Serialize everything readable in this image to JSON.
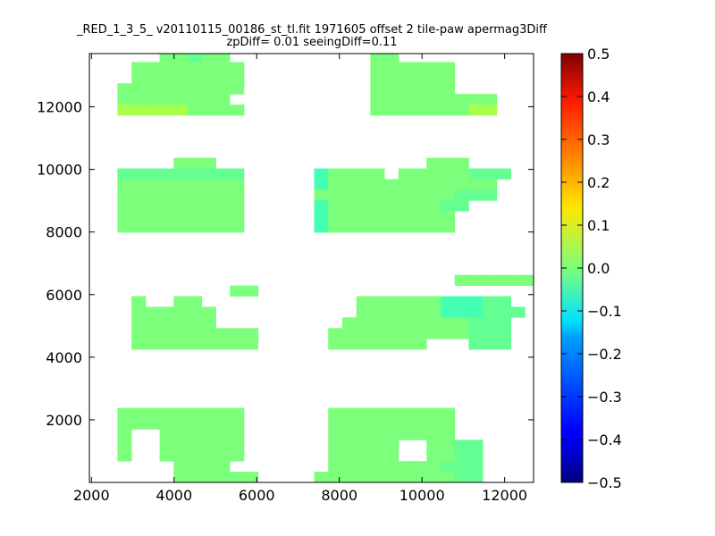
{
  "chart_data": {
    "type": "heatmap",
    "title": "_RED_1_3_5_ v20110115_00186_st_tl.fit 1971605 offset 2 tile-paw apermag3Diff",
    "subtitle": "zpDiff= 0.01 seeingDiff=0.11",
    "xlabel": "",
    "ylabel": "",
    "xlim": [
      1950,
      12700
    ],
    "ylim": [
      0,
      13700
    ],
    "xticks": [
      2000,
      4000,
      6000,
      8000,
      10000,
      12000
    ],
    "yticks": [
      2000,
      4000,
      6000,
      8000,
      10000,
      12000
    ],
    "grid": false,
    "colormap": "jet",
    "colorbar": {
      "range": [
        -0.5,
        0.5
      ],
      "ticks": [
        "0.5",
        "0.4",
        "0.3",
        "0.2",
        "0.1",
        "0.0",
        "−0.1",
        "−0.2",
        "−0.3",
        "−0.4",
        "−0.5"
      ]
    },
    "cell_size": 340,
    "colors": {
      "g": "#7cff7a",
      "m": "#64ff93",
      "t": "#44ffb3",
      "y": "#a9ff4d",
      "o": "#ffb300",
      "c": "#00e5f5",
      "b": "#2a8eff"
    },
    "rows": [
      {
        "y": 13430,
        "cells": ".....ggmgg..........gg..............gggg........g.........."
      },
      {
        "y": 13090,
        "cells": "...gggggggg.........gggggg..........ggggggg.....gg.........."
      },
      {
        "y": 12750,
        "cells": "...gggggggg.........gggggg..........ggggggg.....gg.........."
      },
      {
        "y": 12410,
        "cells": "..ggggggggg.........gggggg..........gg...gg.....gg.........."
      },
      {
        "y": 12070,
        "cells": "..gggggggg..........ggggggggg.......gg.gggggg...gggggg......"
      },
      {
        "y": 11730,
        "cells": "..yyyyygggg.........gggggggyy........gg.gggggg...gggggg......"
      },
      {
        "y": 10030,
        "cells": "......ggg...............ggg................................."
      },
      {
        "y": 9690,
        "cells": "..mmmmmmmmm.....tgggg.gggggmmm........mmmm.mmmm.mmmmmmm.g..."
      },
      {
        "y": 9350,
        "cells": "..ggggggggg.....tgggggggggggg.........mmmm.mmmm.mmmmmmmgt..."
      },
      {
        "y": 9010,
        "cells": "..ggggggggg.....ggggggggggmmm.........mmmmmmmmm.mmmmmmm....."
      },
      {
        "y": 8670,
        "cells": "..ggggggggg.....tggggggggmm...........mmmmmmmmm.mmmmmm......"
      },
      {
        "y": 8330,
        "cells": "..ggggggggg.....tggggggggg............mmmmmmmmm.mmmmmm......"
      },
      {
        "y": 7990,
        "cells": "..ggggggggg.....tggggggggg............mmmmmmmmm.ggggggggggg."
      },
      {
        "y": 6290,
        "cells": "..........................ggggggmmmmmm.......................o..gggggg"
      },
      {
        "y": 5950,
        "cells": "..........gg.......................ggmgm..m......ggggmm.g...mm..ggg...."
      },
      {
        "y": 5610,
        "cells": "...g..gg...........ggggggtttmm.........ggmmmmm.mmmm..t..gg...."
      },
      {
        "y": 5270,
        "cells": "...gggggg..........ggggggtttmmm.........mmmmmmm...mmm....gg..."
      },
      {
        "y": 4930,
        "cells": "...gggggg.........gggggggggmmm.........mmmmmmmm..mmmm....g...."
      },
      {
        "y": 4590,
        "cells": "...ggggggggg.....ggggggggggmmm.........mmmmmmm...mmmm.gggggg.."
      },
      {
        "y": 4250,
        "cells": "...ggggggggg.....ggggggg...mmm.........mmmmmmm...mmmm.gggggg.."
      },
      {
        "y": 2040,
        "cells": "..ggggggggg......ggggggggg........................g....gggggg"
      },
      {
        "y": 1700,
        "cells": "..ggggggggg......ggggggggg.........g..ggggggg....gggggg......."
      },
      {
        "y": 1360,
        "cells": "..g..gggggg......ggggggggg..........gg.ggggggg.g..gggggg......"
      },
      {
        "y": 1020,
        "cells": "..g..gggggg......ggggg..ggmm........ggggggggmgg.......gg........"
      },
      {
        "y": 680,
        "cells": "..g..gggggg......ggggg..ggmm........gggggccccc...........ccccc."
      },
      {
        "y": 340,
        "cells": "......gggg.......ggggggggmmm........gggggcccccb.......ccccc.."
      },
      {
        "y": 0,
        "cells": "......gggggg....ggggggggggmm.........gggggggcccb.........ggg.."
      }
    ]
  }
}
